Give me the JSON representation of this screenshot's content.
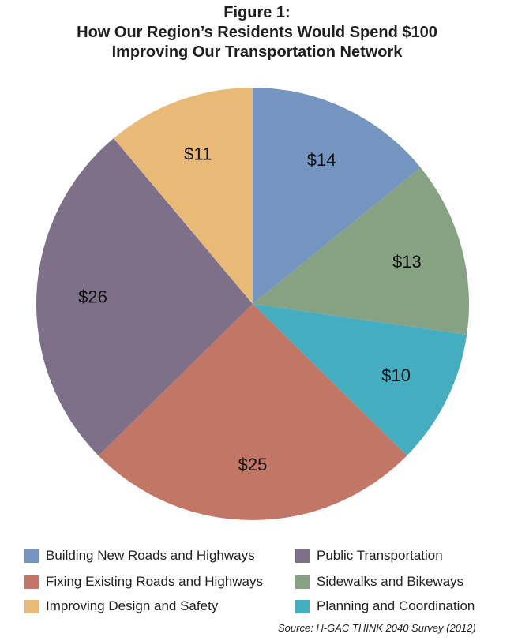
{
  "title": {
    "line1": "Figure 1:",
    "line2": "How Our Region’s Residents Would Spend $100",
    "line3": "Improving Our Transportation Network"
  },
  "chart_data": {
    "type": "pie",
    "title": "How Our Region’s Residents Would Spend $100 Improving Our Transportation Network",
    "total": 100,
    "start_angle": "12 o'clock, clockwise",
    "slices": [
      {
        "label": "Building New Roads and Highways",
        "value": 14,
        "display": "$14",
        "color": "#7395c0"
      },
      {
        "label": "Sidewalks and Bikeways",
        "value": 13,
        "display": "$13",
        "color": "#87a283"
      },
      {
        "label": "Planning and Coordination",
        "value": 10,
        "display": "$10",
        "color": "#44aec0"
      },
      {
        "label": "Fixing Existing Roads and Highways",
        "value": 25,
        "display": "$25",
        "color": "#c27766"
      },
      {
        "label": "Public Transportation",
        "value": 26,
        "display": "$26",
        "color": "#7e7089"
      },
      {
        "label": "Improving Design and Safety",
        "value": 11,
        "display": "$11",
        "color": "#e9b978"
      }
    ],
    "legend_position": "bottom"
  },
  "legend": [
    {
      "label": "Building New Roads and Highways",
      "color": "#7395c0"
    },
    {
      "label": "Fixing Existing Roads and Highways",
      "color": "#c27766"
    },
    {
      "label": "Improving Design and Safety",
      "color": "#e9b978"
    },
    {
      "label": "Public Transportation",
      "color": "#7e7089"
    },
    {
      "label": "Sidewalks and Bikeways",
      "color": "#87a283"
    },
    {
      "label": "Planning and Coordination",
      "color": "#44aec0"
    }
  ],
  "source": "Source:  H-GAC THINK 2040 Survey  (2012)"
}
